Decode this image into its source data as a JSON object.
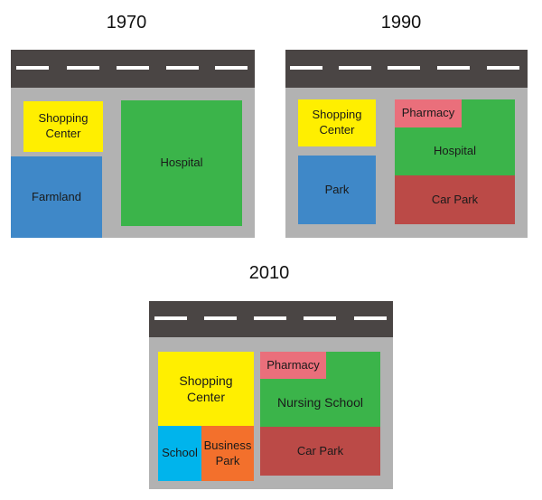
{
  "colors": {
    "road": "#4a4544",
    "ground": "#b2b2b2",
    "shopping_center": "#ffef00",
    "hospital": "#3bb44a",
    "farmland": "#3f88c8",
    "park": "#3f88c8",
    "pharmacy": "#ea6f7b",
    "car_park": "#bb4a47",
    "nursing_school": "#3bb44a",
    "school": "#00b4ec",
    "business_park": "#f3702c"
  },
  "maps": [
    {
      "year": "1970",
      "zones": [
        {
          "id": "shopping-center",
          "label": "Shopping\nCenter"
        },
        {
          "id": "farmland",
          "label": "Farmland"
        },
        {
          "id": "hospital",
          "label": "Hospital"
        }
      ]
    },
    {
      "year": "1990",
      "zones": [
        {
          "id": "shopping-center",
          "label": "Shopping\nCenter"
        },
        {
          "id": "park",
          "label": "Park"
        },
        {
          "id": "hospital",
          "label": "Hospital"
        },
        {
          "id": "pharmacy",
          "label": "Pharmacy"
        },
        {
          "id": "car-park",
          "label": "Car Park"
        }
      ]
    },
    {
      "year": "2010",
      "zones": [
        {
          "id": "shopping-center",
          "label": "Shopping\nCenter"
        },
        {
          "id": "school",
          "label": "School"
        },
        {
          "id": "business-park",
          "label": "Business\nPark"
        },
        {
          "id": "nursing-school",
          "label": "Nursing School"
        },
        {
          "id": "pharmacy",
          "label": "Pharmacy"
        },
        {
          "id": "car-park",
          "label": "Car Park"
        }
      ]
    }
  ]
}
